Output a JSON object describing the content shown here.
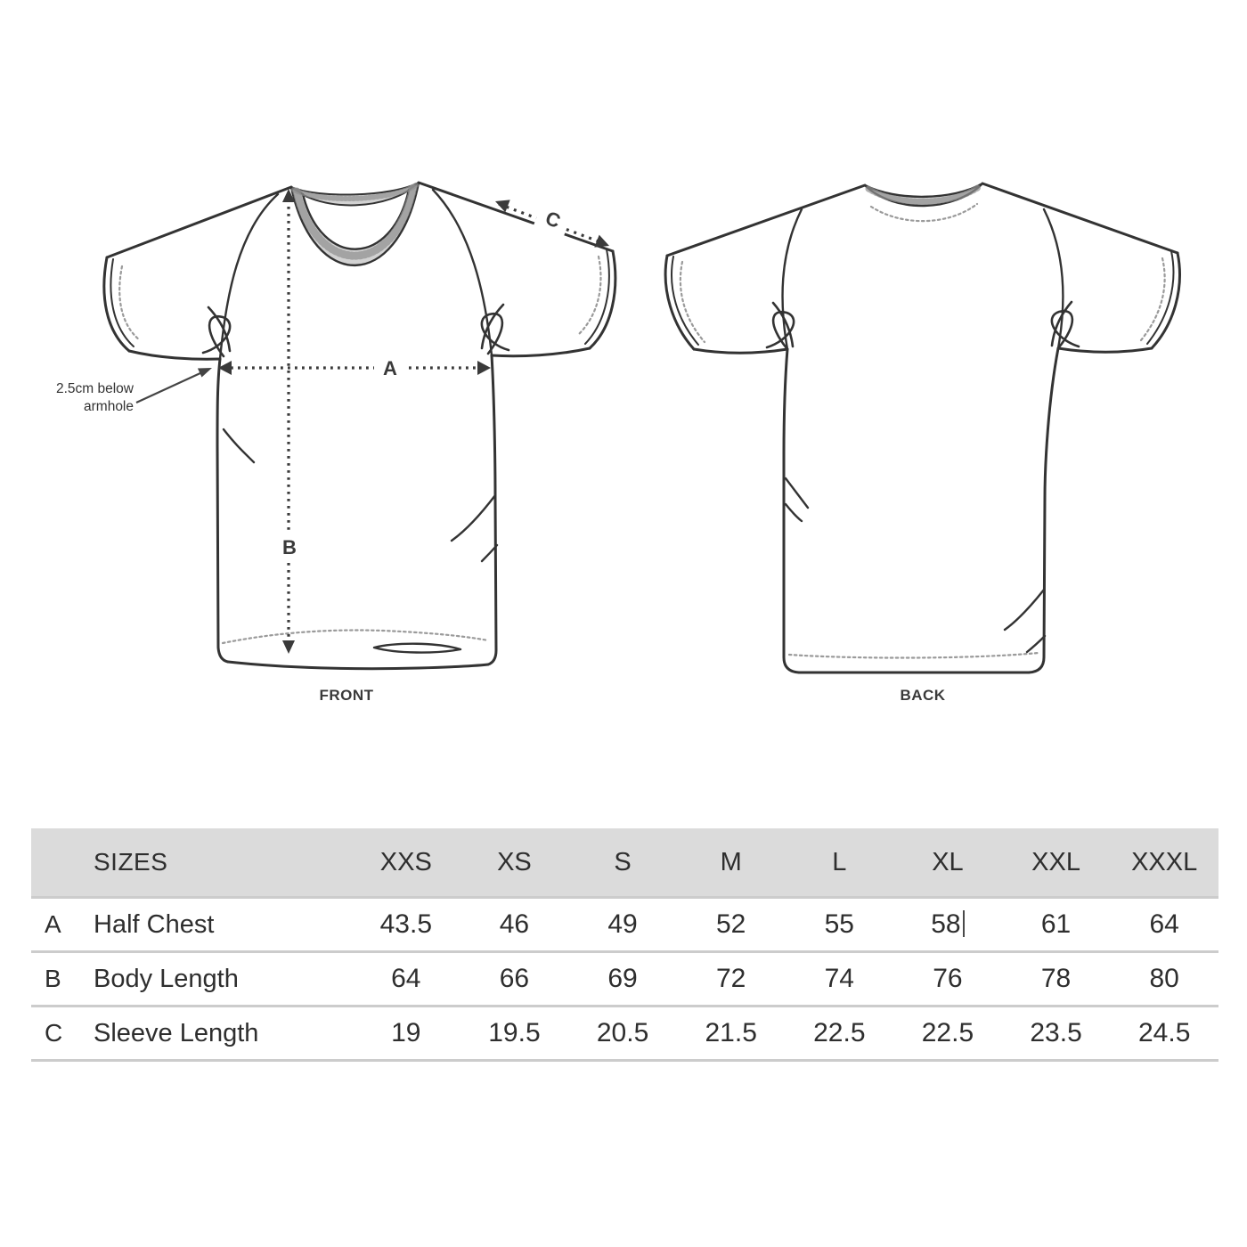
{
  "diagram": {
    "front": {
      "label": "FRONT",
      "annotation": {
        "line1": "2.5cm below",
        "line2": "armhole"
      },
      "measure_a_label": "A",
      "measure_b_label": "B",
      "measure_c_label": "C"
    },
    "back": {
      "label": "BACK"
    }
  },
  "table": {
    "header": {
      "sizes_label": "SIZES",
      "columns": [
        "XXS",
        "XS",
        "S",
        "M",
        "L",
        "XL",
        "XXL",
        "XXXL"
      ]
    },
    "rows": [
      {
        "letter": "A",
        "name": "Half Chest",
        "values": [
          "43.5",
          "46",
          "49",
          "52",
          "55",
          "58",
          "61",
          "64"
        ],
        "caret_after_index": 5
      },
      {
        "letter": "B",
        "name": "Body Length",
        "values": [
          "64",
          "66",
          "69",
          "72",
          "74",
          "76",
          "78",
          "80"
        ]
      },
      {
        "letter": "C",
        "name": "Sleeve Length",
        "values": [
          "19",
          "19.5",
          "20.5",
          "21.5",
          "22.5",
          "22.5",
          "23.5",
          "24.5"
        ]
      }
    ]
  },
  "colors": {
    "outline": "#333333",
    "stitch": "#9a9a9a",
    "collar_band": "#d2d2d2",
    "measure": "#3a3a3a",
    "header_bg": "#dbdbdb",
    "separator": "#cccccc",
    "text": "#2e2e2e"
  }
}
